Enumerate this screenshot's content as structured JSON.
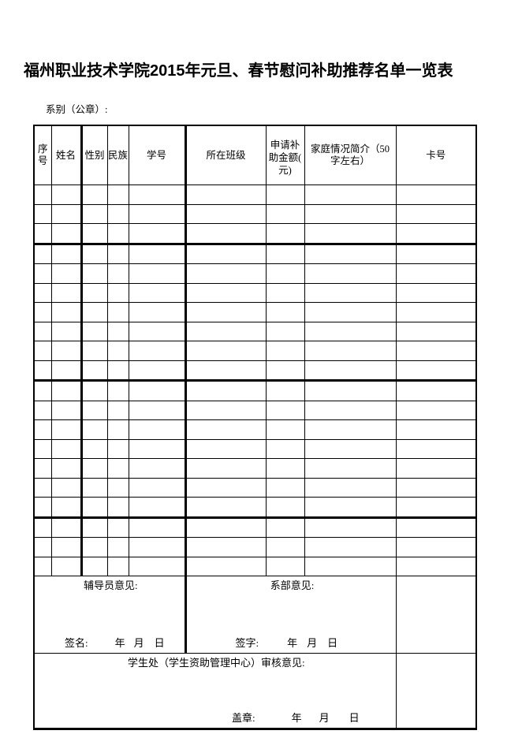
{
  "page": {
    "title": "福州职业技术学院2015年元旦、春节慰问补助推荐名单一览表",
    "department_label": "系别（公章）:"
  },
  "table": {
    "columns": [
      {
        "label": "序\n号"
      },
      {
        "label": "姓名"
      },
      {
        "label": "性别"
      },
      {
        "label": "民族"
      },
      {
        "label": "学号"
      },
      {
        "label": "所在班级"
      },
      {
        "label": "申请补\n助金额(\n元)"
      },
      {
        "label": "家庭情况简介（50\n字左右）"
      },
      {
        "label": "卡号"
      }
    ],
    "empty_row_count": 20,
    "thick_border_after_rows": [
      3,
      10,
      17
    ]
  },
  "sections": {
    "counselor": {
      "title": "辅导员意见:",
      "sign_label": "签名:",
      "year": "年",
      "month": "月",
      "day": "日"
    },
    "department": {
      "title": "系部意见:",
      "sign_label": "签字:",
      "year": "年",
      "month": "月",
      "day": "日"
    },
    "student_affairs": {
      "title": "学生处（学生资助管理中心）审核意见:",
      "sign_label": "盖章:",
      "year": "年",
      "month": "月",
      "day": "日"
    }
  }
}
